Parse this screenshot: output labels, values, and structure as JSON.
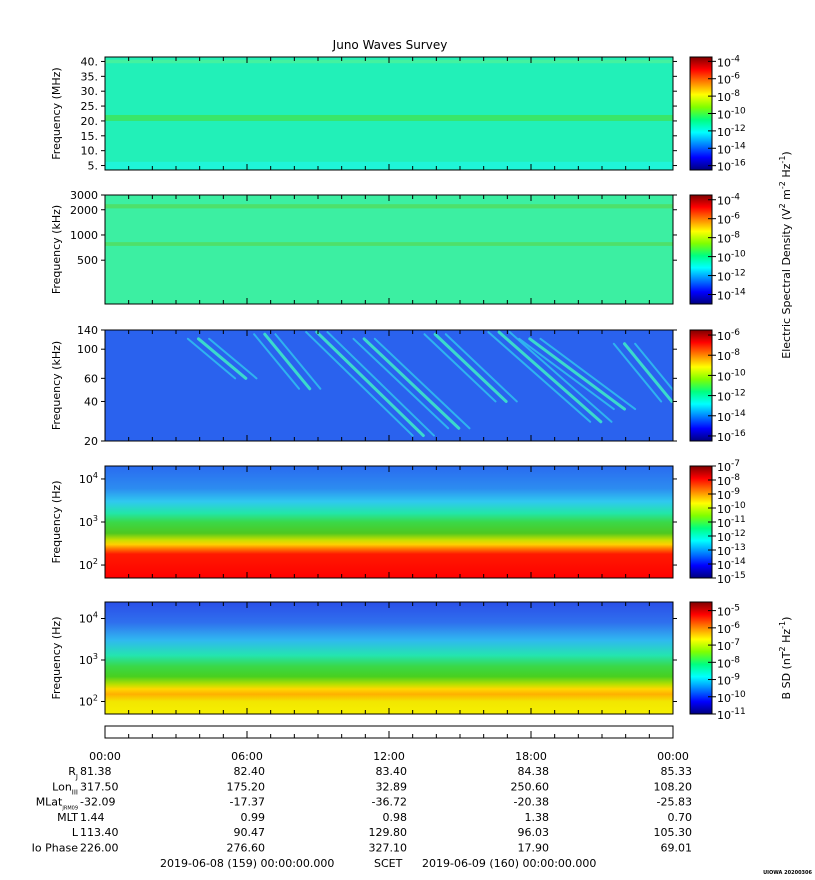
{
  "title": "Juno Waves Survey",
  "watermark": "UIOWA 20200306",
  "chart_data": [
    {
      "type": "heatmap",
      "name": "panel-1",
      "ylabel": "Frequency (MHz)",
      "yscale": "linear",
      "ylim": [
        3.5,
        41.5
      ],
      "yticks": [
        "40.",
        "35.",
        "30.",
        "25.",
        "20.",
        "15.",
        "10.",
        "5."
      ],
      "ytick_values": [
        40,
        35,
        30,
        25,
        20,
        15,
        10,
        5
      ],
      "background_color": "#22f0b8",
      "bands": [
        {
          "center": 21.0,
          "width": 2.0,
          "color": "#39e66a"
        },
        {
          "center": 40.0,
          "width": 1.2,
          "color": "#44f2a0"
        },
        {
          "center": 5.0,
          "width": 2.5,
          "color": "#1ff5d8"
        }
      ],
      "colorbar": {
        "ticks": [
          "-4",
          "-6",
          "-8",
          "-10",
          "-12",
          "-14",
          "-16"
        ],
        "tick_values": [
          -4,
          -6,
          -8,
          -10,
          -12,
          -14,
          -16
        ],
        "range": [
          -16.5,
          -3.5
        ],
        "base": "10"
      }
    },
    {
      "type": "heatmap",
      "name": "panel-2",
      "ylabel": "Frequency (kHz)",
      "yscale": "log",
      "ylim": [
        150,
        3000
      ],
      "yticks": [
        "3000",
        "2000",
        "1000",
        "500"
      ],
      "ytick_values": [
        3000,
        2000,
        1000,
        500
      ],
      "background_color": "#3cefa2",
      "bands": [
        {
          "center": 2200,
          "width_log": 0.05,
          "color": "#4ee06a"
        },
        {
          "center": 780,
          "width_log": 0.045,
          "color": "#4ee06a"
        }
      ],
      "colorbar": {
        "ticks": [
          "-4",
          "-6",
          "-8",
          "-10",
          "-12",
          "-14"
        ],
        "tick_values": [
          -4,
          -6,
          -8,
          -10,
          -12,
          -14
        ],
        "range": [
          -15,
          -3.5
        ],
        "base": "10"
      }
    },
    {
      "type": "heatmap",
      "name": "panel-3",
      "ylabel": "Frequency (kHz)",
      "yscale": "log",
      "ylim": [
        20,
        140
      ],
      "yticks": [
        "140",
        "100",
        "60",
        "40",
        "20"
      ],
      "ytick_values": [
        140,
        100,
        60,
        40,
        20
      ],
      "background_color": "#2a62ee",
      "streaks": [
        {
          "t0": 3.5,
          "t1": 5.5,
          "f0": 120,
          "f1": 60
        },
        {
          "t0": 6.3,
          "t1": 8.2,
          "f0": 130,
          "f1": 50
        },
        {
          "t0": 8.5,
          "t1": 13.0,
          "f0": 135,
          "f1": 22
        },
        {
          "t0": 10.5,
          "t1": 14.5,
          "f0": 120,
          "f1": 25
        },
        {
          "t0": 13.5,
          "t1": 16.5,
          "f0": 130,
          "f1": 40
        },
        {
          "t0": 16.2,
          "t1": 20.5,
          "f0": 135,
          "f1": 28
        },
        {
          "t0": 17.5,
          "t1": 21.5,
          "f0": 120,
          "f1": 35
        },
        {
          "t0": 21.5,
          "t1": 23.5,
          "f0": 110,
          "f1": 40
        }
      ],
      "colorbar": {
        "ticks": [
          "-6",
          "-8",
          "-10",
          "-12",
          "-14",
          "-16"
        ],
        "tick_values": [
          -6,
          -8,
          -10,
          -12,
          -14,
          -16
        ],
        "range": [
          -16.5,
          -5.5
        ],
        "base": "10"
      }
    },
    {
      "type": "heatmap",
      "name": "panel-4",
      "ylabel": "Frequency (Hz)",
      "yscale": "log",
      "ylim": [
        50,
        20000
      ],
      "yticks": [
        "4",
        "3",
        "2"
      ],
      "ytick_values": [
        10000,
        1000,
        100
      ],
      "gradient_stops": [
        {
          "freq": 20000,
          "color": "#2a6bf0"
        },
        {
          "freq": 6000,
          "color": "#2c8cf0"
        },
        {
          "freq": 3000,
          "color": "#30c8f0"
        },
        {
          "freq": 1600,
          "color": "#22e6a8"
        },
        {
          "freq": 1000,
          "color": "#3ad94a"
        },
        {
          "freq": 550,
          "color": "#4ec820"
        },
        {
          "freq": 380,
          "color": "#c8e000"
        },
        {
          "freq": 300,
          "color": "#ffd000"
        },
        {
          "freq": 240,
          "color": "#ff7a00"
        },
        {
          "freq": 180,
          "color": "#ff1a00"
        },
        {
          "freq": 50,
          "color": "#ff0000"
        }
      ],
      "colorbar": {
        "ticks": [
          "-7",
          "-8",
          "-9",
          "-10",
          "-11",
          "-12",
          "-13",
          "-14",
          "-15"
        ],
        "tick_values": [
          -7,
          -8,
          -9,
          -10,
          -11,
          -12,
          -13,
          -14,
          -15
        ],
        "range": [
          -15,
          -7
        ],
        "base": "10"
      }
    },
    {
      "type": "heatmap",
      "name": "panel-5",
      "ylabel": "Frequency (Hz)",
      "yscale": "log",
      "ylim": [
        50,
        25000
      ],
      "yticks": [
        "4",
        "3",
        "2"
      ],
      "ytick_values": [
        10000,
        1000,
        100
      ],
      "gradient_stops": [
        {
          "freq": 25000,
          "color": "#2a4fe8"
        },
        {
          "freq": 8000,
          "color": "#2f70ee"
        },
        {
          "freq": 3000,
          "color": "#30b8f0"
        },
        {
          "freq": 1300,
          "color": "#24e4b0"
        },
        {
          "freq": 700,
          "color": "#3ad848"
        },
        {
          "freq": 400,
          "color": "#48d020"
        },
        {
          "freq": 260,
          "color": "#b8e000"
        },
        {
          "freq": 200,
          "color": "#ffd800"
        },
        {
          "freq": 150,
          "color": "#ffb000"
        },
        {
          "freq": 100,
          "color": "#f2e600"
        },
        {
          "freq": 50,
          "color": "#f5f000"
        }
      ],
      "colorbar": {
        "ticks": [
          "-5",
          "-6",
          "-7",
          "-8",
          "-9",
          "-10",
          "-11"
        ],
        "tick_values": [
          -5,
          -6,
          -7,
          -8,
          -9,
          -10,
          -11
        ],
        "range": [
          -11,
          -4.5
        ],
        "base": "10"
      }
    }
  ],
  "colorbar_label_electric": "Electric Spectral Density (V",
  "colorbar_label_electric_rest": " m",
  "colorbar_label_electric_end": " Hz",
  "colorbar_label_b": "B SD (nT",
  "colorbar_label_b_end": " Hz",
  "sup_2": "2",
  "sup_minus2": "-2",
  "sup_minus1": "-1",
  "time_axis": {
    "range_hours": [
      0,
      24
    ],
    "tick_labels": [
      "00:00",
      "06:00",
      "12:00",
      "18:00",
      "00:00"
    ],
    "tick_hours": [
      0,
      6,
      12,
      18,
      24
    ]
  },
  "ephemeris": {
    "rows": [
      {
        "label": "R",
        "sub": "J",
        "values": [
          "81.38",
          "82.40",
          "83.40",
          "84.38",
          "85.33"
        ]
      },
      {
        "label": "Lon",
        "sub": "III",
        "values": [
          "317.50",
          "175.20",
          "32.89",
          "250.60",
          "108.20"
        ]
      },
      {
        "label": "MLat",
        "sub": "JRM09",
        "values": [
          "-32.09",
          "-17.37",
          "-36.72",
          "-20.38",
          "-25.83"
        ]
      },
      {
        "label": "MLT",
        "sub": "",
        "values": [
          "1.44",
          "0.99",
          "0.98",
          "1.38",
          "0.70"
        ]
      },
      {
        "label": "L",
        "sub": "",
        "values": [
          "113.40",
          "90.47",
          "129.80",
          "96.03",
          "105.30"
        ]
      },
      {
        "label": "Io Phase",
        "sub": "",
        "values": [
          "226.00",
          "276.60",
          "327.10",
          "17.90",
          "69.01"
        ]
      }
    ]
  },
  "footer": {
    "start": "2019-06-08 (159) 00:00:00.000",
    "frame": "SCET",
    "end": "2019-06-09 (160) 00:00:00.000"
  },
  "jet_colors": [
    "#00007f",
    "#0000ff",
    "#0080ff",
    "#00ffff",
    "#00ff80",
    "#80ff00",
    "#ffff00",
    "#ff8000",
    "#ff0000",
    "#7f0000"
  ]
}
